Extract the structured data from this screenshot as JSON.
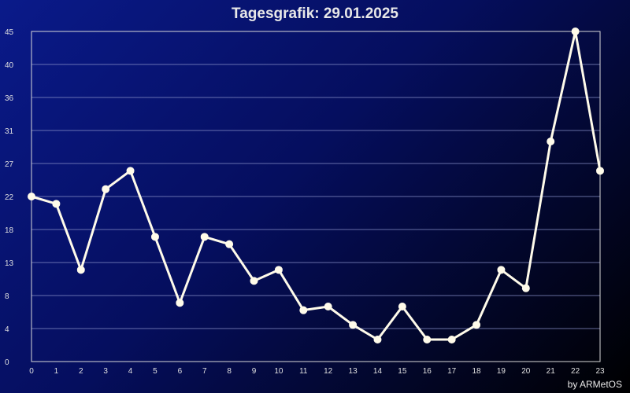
{
  "chart_data": {
    "type": "line",
    "title": "Tagesgrafik: 29.01.2025",
    "credit": "by ARMetOS",
    "xlabel": "",
    "ylabel": "",
    "x": [
      0,
      1,
      2,
      3,
      4,
      5,
      6,
      7,
      8,
      9,
      10,
      11,
      12,
      13,
      14,
      15,
      16,
      17,
      18,
      19,
      20,
      21,
      22,
      23
    ],
    "y_ticks": [
      0,
      4,
      8,
      13,
      18,
      22,
      27,
      31,
      36,
      40,
      45
    ],
    "ylim": [
      0,
      45
    ],
    "grid": true,
    "series": [
      {
        "values": [
          22.5,
          21.5,
          12.5,
          23.5,
          26,
          17,
          8,
          17,
          16,
          11,
          12.5,
          7,
          7.5,
          5,
          3,
          7.5,
          3,
          3,
          5,
          12.5,
          10,
          30,
          45,
          26
        ]
      }
    ],
    "colors": {
      "line": "#fffbea",
      "grid": "#8890c8",
      "frame": "#d8d8d8"
    }
  }
}
